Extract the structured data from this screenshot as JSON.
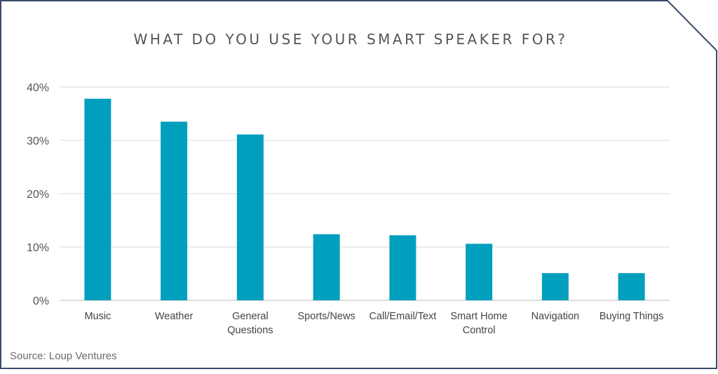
{
  "chart_data": {
    "type": "bar",
    "title": "WHAT DO YOU USE YOUR SMART SPEAKER FOR?",
    "categories": [
      "Music",
      "Weather",
      "General Questions",
      "Sports/News",
      "Call/Email/Text",
      "Smart Home Control",
      "Navigation",
      "Buying Things"
    ],
    "values": [
      37.8,
      33.5,
      31.1,
      12.4,
      12.2,
      10.6,
      5.1,
      5.1
    ],
    "ylim": [
      0,
      40
    ],
    "yticks": [
      "0%",
      "10%",
      "20%",
      "30%",
      "40%"
    ],
    "grid": true,
    "bar_color": "#009fbd"
  },
  "source": "Source: Loup Ventures"
}
